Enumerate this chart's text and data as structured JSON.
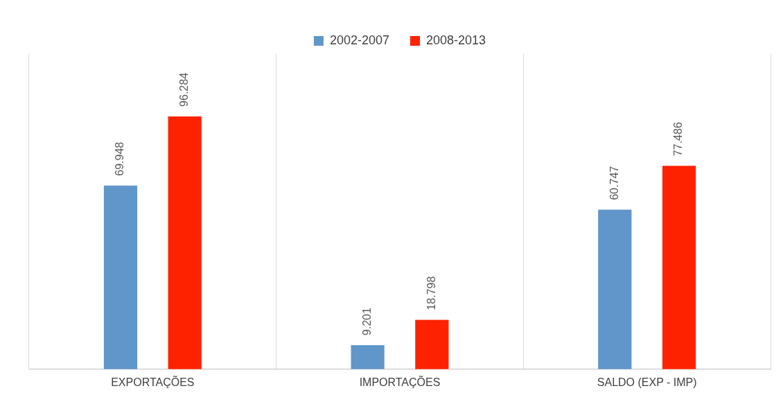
{
  "chart_data": {
    "type": "bar",
    "categories": [
      "EXPORTAÇÕES",
      "IMPORTAÇÕES",
      "SALDO (EXP - IMP)"
    ],
    "series": [
      {
        "name": "2002-2007",
        "color": "#6096c9",
        "values": [
          69.948,
          9.201,
          60.747
        ]
      },
      {
        "name": "2008-2013",
        "color": "#ff2200",
        "values": [
          96.284,
          18.798,
          77.486
        ]
      }
    ],
    "data_labels": true,
    "legend": "top",
    "grid": "x",
    "tick_labels": "x"
  }
}
